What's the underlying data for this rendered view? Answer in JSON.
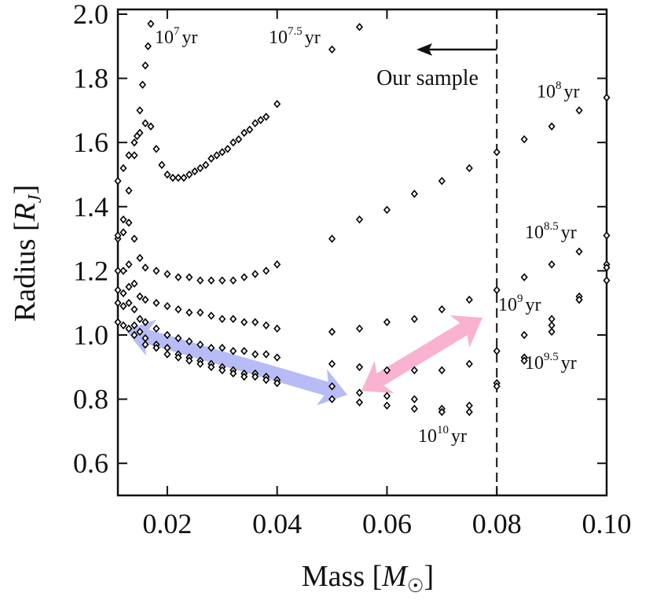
{
  "chart_data": {
    "type": "scatter",
    "xlabel": {
      "text": "Mass [",
      "symbol": "M",
      "sub": "☉",
      "close": "]"
    },
    "ylabel": {
      "text": "Radius [",
      "symbol": "R",
      "sub": "J",
      "close": "]"
    },
    "xlim": [
      0.011,
      0.1
    ],
    "ylim": [
      0.5,
      2.0
    ],
    "xticks": [
      0.02,
      0.04,
      0.06,
      0.08,
      {
        "value": 0.1,
        "label": "0.10"
      }
    ],
    "yticks": [
      0.6,
      0.8,
      {
        "value": 1,
        "label": "1.0"
      },
      1.2,
      1.4,
      1.6,
      1.8,
      {
        "value": 2,
        "label": "2.0"
      }
    ],
    "sample_limit": 0.08,
    "sample_label": "Our sample",
    "marker_color": "#000000",
    "series": [
      {
        "label": {
          "base": "10",
          "exp": "7",
          "unit": "yr"
        },
        "x": [
          0.011,
          0.012,
          0.013,
          0.014,
          0.0145,
          0.015,
          0.0155,
          0.016,
          0.0165,
          0.017
        ],
        "values": [
          1.3,
          1.36,
          1.45,
          1.56,
          1.62,
          1.7,
          1.78,
          1.84,
          1.9,
          1.97
        ]
      },
      {
        "label": {
          "base": "10",
          "exp": "7.5",
          "unit": "yr"
        },
        "x": [
          0.011,
          0.012,
          0.013,
          0.014,
          0.015,
          0.016,
          0.017,
          0.018,
          0.019,
          0.02,
          0.021,
          0.022,
          0.023,
          0.024,
          0.025,
          0.026,
          0.027,
          0.028,
          0.029,
          0.03,
          0.031,
          0.032,
          0.033,
          0.034,
          0.035,
          0.036,
          0.037,
          0.038,
          0.04,
          0.05,
          0.055
        ],
        "values": [
          1.48,
          1.52,
          1.56,
          1.6,
          1.63,
          1.66,
          1.65,
          1.58,
          1.53,
          1.5,
          1.49,
          1.49,
          1.49,
          1.5,
          1.51,
          1.52,
          1.53,
          1.55,
          1.56,
          1.57,
          1.58,
          1.6,
          1.61,
          1.63,
          1.64,
          1.66,
          1.67,
          1.68,
          1.72,
          1.89,
          1.96
        ]
      },
      {
        "label": {
          "base": "10",
          "exp": "8",
          "unit": "yr"
        },
        "x": [
          0.011,
          0.012,
          0.013,
          0.014,
          0.015,
          0.016,
          0.018,
          0.02,
          0.022,
          0.024,
          0.026,
          0.028,
          0.03,
          0.032,
          0.034,
          0.036,
          0.038,
          0.04,
          0.05,
          0.055,
          0.06,
          0.065,
          0.07,
          0.075,
          0.08,
          0.085,
          0.09,
          0.095,
          0.1
        ],
        "values": [
          1.31,
          1.32,
          1.35,
          1.3,
          1.24,
          1.21,
          1.2,
          1.19,
          1.18,
          1.18,
          1.17,
          1.17,
          1.17,
          1.17,
          1.18,
          1.19,
          1.2,
          1.22,
          1.3,
          1.36,
          1.39,
          1.44,
          1.48,
          1.52,
          1.57,
          1.61,
          1.65,
          1.7,
          1.74
        ]
      },
      {
        "label": {
          "base": "10",
          "exp": "8.5",
          "unit": "yr"
        },
        "x": [
          0.011,
          0.012,
          0.013,
          0.014,
          0.015,
          0.016,
          0.018,
          0.02,
          0.022,
          0.024,
          0.026,
          0.028,
          0.03,
          0.032,
          0.034,
          0.036,
          0.038,
          0.04,
          0.05,
          0.055,
          0.06,
          0.065,
          0.07,
          0.075,
          0.08,
          0.085,
          0.09,
          0.095,
          0.1
        ],
        "values": [
          1.2,
          1.2,
          1.22,
          1.16,
          1.12,
          1.11,
          1.1,
          1.09,
          1.08,
          1.07,
          1.07,
          1.06,
          1.05,
          1.05,
          1.04,
          1.04,
          1.03,
          1.02,
          1.01,
          1.02,
          1.04,
          1.05,
          1.08,
          1.11,
          1.14,
          1.18,
          1.22,
          1.26,
          1.31
        ]
      },
      {
        "label": {
          "base": "10",
          "exp": "9",
          "unit": "yr"
        },
        "x": [
          0.011,
          0.012,
          0.013,
          0.014,
          0.015,
          0.016,
          0.018,
          0.02,
          0.022,
          0.024,
          0.026,
          0.028,
          0.03,
          0.032,
          0.034,
          0.036,
          0.038,
          0.04,
          0.05,
          0.055,
          0.06,
          0.065,
          0.07,
          0.075,
          0.08,
          0.085,
          0.09,
          0.095,
          0.1
        ],
        "values": [
          1.14,
          1.13,
          1.15,
          1.08,
          1.05,
          1.04,
          1.02,
          1.0,
          0.99,
          0.98,
          0.97,
          0.96,
          0.96,
          0.95,
          0.95,
          0.94,
          0.94,
          0.93,
          0.91,
          0.9,
          0.89,
          0.89,
          0.89,
          0.91,
          0.95,
          1.0,
          1.05,
          1.11,
          1.17
        ]
      },
      {
        "label": {
          "base": "10",
          "exp": "9.5",
          "unit": "yr"
        },
        "x": [
          0.011,
          0.012,
          0.013,
          0.014,
          0.015,
          0.016,
          0.018,
          0.02,
          0.022,
          0.024,
          0.026,
          0.028,
          0.03,
          0.032,
          0.034,
          0.036,
          0.038,
          0.04,
          0.05,
          0.055,
          0.06,
          0.065,
          0.07,
          0.075,
          0.08,
          0.085,
          0.09,
          0.095,
          0.1
        ],
        "values": [
          1.1,
          1.09,
          1.1,
          1.03,
          1.01,
          0.99,
          0.97,
          0.96,
          0.94,
          0.93,
          0.92,
          0.91,
          0.9,
          0.89,
          0.88,
          0.88,
          0.87,
          0.86,
          0.84,
          0.82,
          0.81,
          0.8,
          0.77,
          0.78,
          0.85,
          0.93,
          1.03,
          1.12,
          1.22
        ]
      },
      {
        "label": {
          "base": "10",
          "exp": "10",
          "unit": "yr"
        },
        "x": [
          0.011,
          0.012,
          0.013,
          0.014,
          0.016,
          0.018,
          0.02,
          0.022,
          0.024,
          0.026,
          0.028,
          0.03,
          0.032,
          0.034,
          0.036,
          0.038,
          0.04,
          0.05,
          0.055,
          0.06,
          0.065,
          0.07,
          0.075,
          0.08,
          0.085,
          0.09,
          0.095,
          0.1
        ],
        "values": [
          1.04,
          1.03,
          1.02,
          1.0,
          0.97,
          0.96,
          0.94,
          0.93,
          0.92,
          0.91,
          0.9,
          0.89,
          0.88,
          0.87,
          0.87,
          0.86,
          0.85,
          0.8,
          0.79,
          0.78,
          0.77,
          0.76,
          0.76,
          0.84,
          0.92,
          1.01,
          1.11,
          1.21
        ]
      }
    ]
  }
}
